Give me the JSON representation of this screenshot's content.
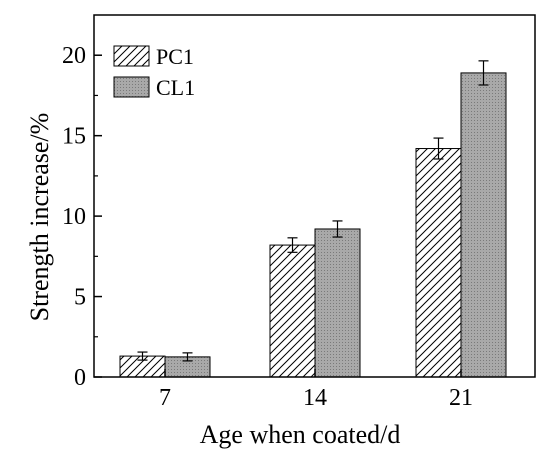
{
  "chart_data": {
    "type": "bar",
    "categories": [
      "7",
      "14",
      "21"
    ],
    "series": [
      {
        "name": "PC1",
        "values": [
          1.3,
          8.2,
          14.2
        ],
        "errors": [
          0.25,
          0.45,
          0.65
        ],
        "pattern": "hatch",
        "color": "#ffffff"
      },
      {
        "name": "CL1",
        "values": [
          1.25,
          9.2,
          18.9
        ],
        "errors": [
          0.25,
          0.5,
          0.75
        ],
        "pattern": "dots",
        "color": "#a9a9a9"
      }
    ],
    "xlabel": "Age when coated/d",
    "ylabel": "Strength increase/%",
    "ylim": [
      0,
      22.5
    ],
    "yticks": [
      "0",
      "5",
      "10",
      "15",
      "20"
    ],
    "grid": false,
    "legend_position": "top-left"
  }
}
